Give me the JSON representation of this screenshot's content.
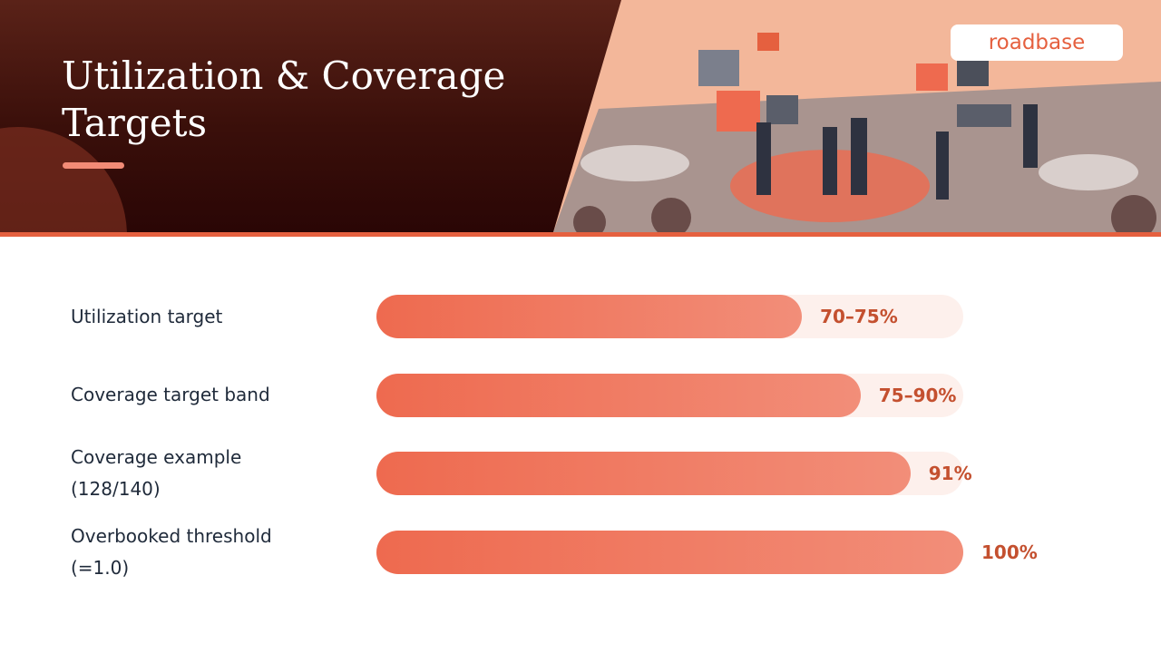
{
  "header": {
    "title": "Utilization & Coverage Targets",
    "logo": "roadbase"
  },
  "chart_data": {
    "type": "bar",
    "orientation": "horizontal",
    "categories": [
      "Utilization target",
      "Coverage target band",
      "Coverage example (128/140)",
      "Overbooked threshold (=1.0)"
    ],
    "values": [
      72.5,
      82.5,
      91,
      100
    ],
    "value_labels": [
      "70–75%",
      "75–90%",
      "91%",
      "100%"
    ],
    "xlim": [
      0,
      100
    ],
    "color": "#ee6a4f",
    "label_color": "#c4502f"
  }
}
